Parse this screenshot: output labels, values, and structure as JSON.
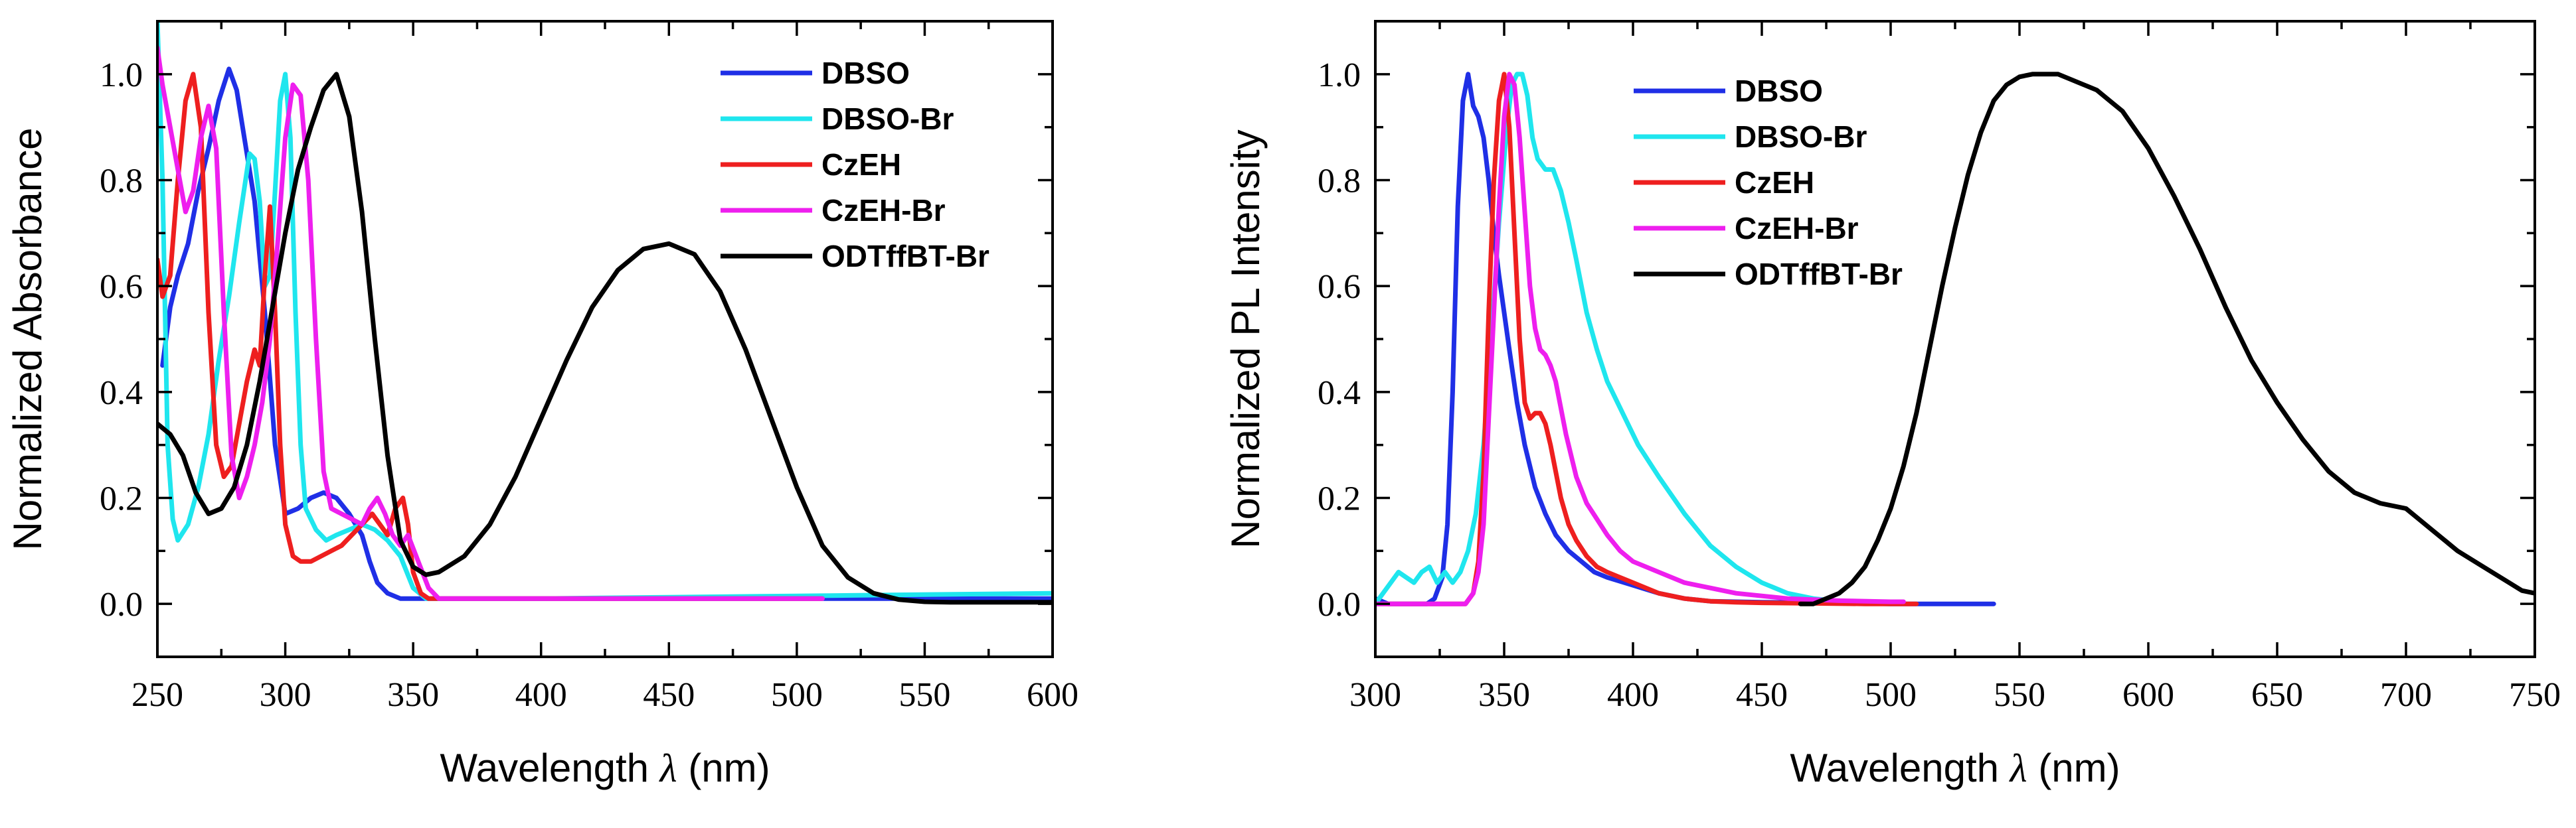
{
  "chart_data": [
    {
      "type": "line",
      "xlabel_prefix": "Wavelength ",
      "xlabel_symbol": "λ",
      "xlabel_suffix": " (nm)",
      "ylabel": "Normalized Absorbance",
      "xlim": [
        250,
        600
      ],
      "ylim": [
        -0.1,
        1.1
      ],
      "xticks": [
        250,
        300,
        350,
        400,
        450,
        500,
        550,
        600
      ],
      "xticklabels": [
        "250",
        "300",
        "350",
        "400",
        "450",
        "500",
        "550",
        "600"
      ],
      "yticks": [
        0.0,
        0.2,
        0.4,
        0.6,
        0.8,
        1.0
      ],
      "yticklabels": [
        "0.0",
        "0.2",
        "0.4",
        "0.6",
        "0.8",
        "1.0"
      ],
      "legend_position": "top-right",
      "series": [
        {
          "name": "DBSO",
          "color": "#1f2fe6",
          "x": [
            252,
            255,
            258,
            262,
            266,
            270,
            274,
            278,
            281,
            284,
            288,
            292,
            296,
            300,
            305,
            310,
            315,
            320,
            325,
            330,
            333,
            336,
            340,
            345,
            350,
            360,
            400,
            500,
            600
          ],
          "y": [
            0.45,
            0.56,
            0.62,
            0.68,
            0.78,
            0.86,
            0.95,
            1.01,
            0.97,
            0.88,
            0.76,
            0.55,
            0.3,
            0.17,
            0.18,
            0.2,
            0.21,
            0.2,
            0.17,
            0.13,
            0.08,
            0.04,
            0.02,
            0.01,
            0.01,
            0.01,
            0.01,
            0.01,
            0.01
          ]
        },
        {
          "name": "DBSO-Br",
          "color": "#1fe6ee",
          "x": [
            250,
            252,
            254,
            256,
            258,
            262,
            266,
            270,
            274,
            278,
            282,
            286,
            288,
            290,
            292,
            294,
            296,
            298,
            300,
            302,
            304,
            306,
            308,
            312,
            316,
            320,
            325,
            330,
            335,
            340,
            345,
            350,
            355,
            360,
            400,
            500,
            600
          ],
          "y": [
            1.1,
            0.8,
            0.3,
            0.16,
            0.12,
            0.15,
            0.22,
            0.32,
            0.46,
            0.58,
            0.72,
            0.85,
            0.84,
            0.76,
            0.6,
            0.62,
            0.78,
            0.95,
            1.0,
            0.88,
            0.55,
            0.3,
            0.18,
            0.14,
            0.12,
            0.13,
            0.14,
            0.15,
            0.14,
            0.12,
            0.09,
            0.03,
            0.01,
            0.01,
            0.01,
            0.015,
            0.02
          ]
        },
        {
          "name": "CzEH",
          "color": "#ee1f1f",
          "x": [
            250,
            252,
            255,
            258,
            261,
            264,
            267,
            270,
            273,
            276,
            279,
            282,
            285,
            288,
            290,
            292,
            294,
            296,
            298,
            300,
            303,
            306,
            310,
            314,
            318,
            322,
            326,
            330,
            334,
            337,
            340,
            343,
            346,
            348,
            350,
            353,
            356,
            360,
            400,
            500,
            510
          ],
          "y": [
            0.65,
            0.58,
            0.62,
            0.8,
            0.95,
            1.0,
            0.9,
            0.55,
            0.3,
            0.24,
            0.26,
            0.34,
            0.42,
            0.48,
            0.45,
            0.62,
            0.75,
            0.55,
            0.3,
            0.15,
            0.09,
            0.08,
            0.08,
            0.09,
            0.1,
            0.11,
            0.13,
            0.15,
            0.17,
            0.15,
            0.13,
            0.18,
            0.2,
            0.15,
            0.06,
            0.02,
            0.01,
            0.01,
            0.01,
            0.01,
            0.01
          ]
        },
        {
          "name": "CzEH-Br",
          "color": "#ee1fee",
          "x": [
            250,
            252,
            255,
            258,
            261,
            264,
            267,
            270,
            273,
            276,
            279,
            282,
            285,
            288,
            291,
            294,
            297,
            300,
            303,
            306,
            309,
            312,
            315,
            318,
            322,
            326,
            330,
            333,
            336,
            339,
            342,
            345,
            348,
            352,
            356,
            360,
            400,
            500,
            510
          ],
          "y": [
            1.05,
            0.98,
            0.9,
            0.82,
            0.74,
            0.78,
            0.88,
            0.94,
            0.86,
            0.55,
            0.28,
            0.2,
            0.24,
            0.3,
            0.38,
            0.5,
            0.68,
            0.88,
            0.98,
            0.96,
            0.8,
            0.5,
            0.25,
            0.18,
            0.17,
            0.16,
            0.15,
            0.18,
            0.2,
            0.17,
            0.13,
            0.11,
            0.13,
            0.08,
            0.03,
            0.01,
            0.01,
            0.01,
            0.01
          ]
        },
        {
          "name": "ODTffBT-Br",
          "color": "#000000",
          "x": [
            250,
            255,
            260,
            265,
            270,
            275,
            280,
            285,
            290,
            295,
            300,
            305,
            310,
            315,
            320,
            325,
            330,
            335,
            340,
            345,
            350,
            355,
            360,
            370,
            380,
            390,
            400,
            410,
            420,
            430,
            440,
            450,
            460,
            470,
            480,
            490,
            500,
            510,
            520,
            530,
            540,
            550,
            560,
            580,
            600
          ],
          "y": [
            0.34,
            0.32,
            0.28,
            0.21,
            0.17,
            0.18,
            0.22,
            0.3,
            0.42,
            0.56,
            0.7,
            0.82,
            0.9,
            0.97,
            1.0,
            0.92,
            0.74,
            0.5,
            0.28,
            0.12,
            0.07,
            0.055,
            0.06,
            0.09,
            0.15,
            0.24,
            0.35,
            0.46,
            0.56,
            0.63,
            0.67,
            0.68,
            0.66,
            0.59,
            0.48,
            0.35,
            0.22,
            0.11,
            0.05,
            0.02,
            0.008,
            0.004,
            0.003,
            0.003,
            0.003
          ]
        }
      ]
    },
    {
      "type": "line",
      "xlabel_prefix": "Wavelength ",
      "xlabel_symbol": "λ",
      "xlabel_suffix": " (nm)",
      "ylabel": "Normalized PL Intensity",
      "xlim": [
        300,
        750
      ],
      "ylim": [
        -0.1,
        1.1
      ],
      "xticks": [
        300,
        350,
        400,
        450,
        500,
        550,
        600,
        650,
        700,
        750
      ],
      "xticklabels": [
        "300",
        "350",
        "400",
        "450",
        "500",
        "550",
        "600",
        "650",
        "700",
        "750"
      ],
      "yticks": [
        0.0,
        0.2,
        0.4,
        0.6,
        0.8,
        1.0
      ],
      "yticklabels": [
        "0.0",
        "0.2",
        "0.4",
        "0.6",
        "0.8",
        "1.0"
      ],
      "legend_position": "top-left",
      "series": [
        {
          "name": "DBSO",
          "color": "#1f2fe6",
          "x": [
            300,
            305,
            310,
            315,
            320,
            323,
            326,
            328,
            330,
            332,
            334,
            336,
            338,
            340,
            342,
            344,
            346,
            348,
            350,
            352,
            355,
            358,
            362,
            366,
            370,
            375,
            380,
            385,
            390,
            400,
            410,
            420,
            430,
            450,
            480,
            500,
            540
          ],
          "y": [
            0.01,
            0.0,
            0.0,
            0.0,
            0.0,
            0.01,
            0.05,
            0.15,
            0.4,
            0.75,
            0.95,
            1.0,
            0.94,
            0.92,
            0.88,
            0.8,
            0.7,
            0.62,
            0.55,
            0.48,
            0.38,
            0.3,
            0.22,
            0.17,
            0.13,
            0.1,
            0.08,
            0.06,
            0.05,
            0.035,
            0.02,
            0.01,
            0.005,
            0.003,
            0.002,
            0.0,
            0.0
          ]
        },
        {
          "name": "DBSO-Br",
          "color": "#1fe6ee",
          "x": [
            300,
            303,
            306,
            309,
            312,
            315,
            318,
            321,
            324,
            327,
            330,
            333,
            336,
            339,
            342,
            345,
            348,
            351,
            353,
            355,
            357,
            359,
            361,
            363,
            366,
            369,
            372,
            375,
            378,
            382,
            386,
            390,
            394,
            398,
            402,
            410,
            420,
            430,
            440,
            450,
            460,
            470,
            480,
            500
          ],
          "y": [
            0.0,
            0.02,
            0.04,
            0.06,
            0.05,
            0.04,
            0.06,
            0.07,
            0.04,
            0.06,
            0.04,
            0.06,
            0.1,
            0.17,
            0.3,
            0.5,
            0.72,
            0.9,
            0.98,
            1.0,
            1.0,
            0.96,
            0.88,
            0.84,
            0.82,
            0.82,
            0.78,
            0.72,
            0.65,
            0.55,
            0.48,
            0.42,
            0.38,
            0.34,
            0.3,
            0.24,
            0.17,
            0.11,
            0.07,
            0.04,
            0.02,
            0.01,
            0.005,
            0.0
          ]
        },
        {
          "name": "CzEH",
          "color": "#ee1f1f",
          "x": [
            300,
            320,
            330,
            335,
            338,
            340,
            342,
            344,
            346,
            348,
            350,
            352,
            354,
            356,
            358,
            360,
            362,
            364,
            366,
            368,
            370,
            372,
            375,
            378,
            382,
            386,
            390,
            395,
            400,
            410,
            420,
            430,
            440,
            450,
            470,
            490,
            510
          ],
          "y": [
            0.0,
            0.0,
            0.0,
            0.0,
            0.02,
            0.08,
            0.25,
            0.55,
            0.8,
            0.95,
            1.0,
            0.9,
            0.7,
            0.5,
            0.38,
            0.35,
            0.36,
            0.36,
            0.34,
            0.3,
            0.25,
            0.2,
            0.15,
            0.12,
            0.09,
            0.07,
            0.06,
            0.05,
            0.04,
            0.02,
            0.01,
            0.005,
            0.003,
            0.002,
            0.001,
            0.0,
            0.0
          ]
        },
        {
          "name": "CzEH-Br",
          "color": "#ee1fee",
          "x": [
            300,
            320,
            330,
            335,
            338,
            340,
            342,
            344,
            346,
            348,
            350,
            352,
            354,
            356,
            358,
            360,
            362,
            364,
            366,
            368,
            370,
            374,
            378,
            382,
            386,
            390,
            395,
            400,
            410,
            420,
            430,
            440,
            450,
            460,
            470,
            480,
            500,
            505
          ],
          "y": [
            0.0,
            0.0,
            0.0,
            0.0,
            0.02,
            0.06,
            0.15,
            0.35,
            0.55,
            0.75,
            0.92,
            1.0,
            0.98,
            0.88,
            0.74,
            0.6,
            0.52,
            0.48,
            0.47,
            0.45,
            0.42,
            0.32,
            0.24,
            0.19,
            0.16,
            0.13,
            0.1,
            0.08,
            0.06,
            0.04,
            0.03,
            0.02,
            0.015,
            0.01,
            0.008,
            0.006,
            0.004,
            0.004
          ]
        },
        {
          "name": "ODTffBT-Br",
          "color": "#000000",
          "x": [
            465,
            470,
            475,
            480,
            485,
            490,
            495,
            500,
            505,
            510,
            515,
            520,
            525,
            530,
            535,
            540,
            545,
            550,
            555,
            560,
            565,
            570,
            575,
            580,
            585,
            590,
            600,
            610,
            620,
            630,
            640,
            650,
            660,
            670,
            680,
            690,
            700,
            705,
            710,
            720,
            730,
            740,
            745,
            750
          ],
          "y": [
            0.0,
            0.0,
            0.01,
            0.02,
            0.04,
            0.07,
            0.12,
            0.18,
            0.26,
            0.36,
            0.48,
            0.6,
            0.71,
            0.81,
            0.89,
            0.95,
            0.98,
            0.995,
            1.0,
            1.0,
            1.0,
            0.99,
            0.98,
            0.97,
            0.95,
            0.93,
            0.86,
            0.77,
            0.67,
            0.56,
            0.46,
            0.38,
            0.31,
            0.25,
            0.21,
            0.19,
            0.18,
            0.16,
            0.14,
            0.1,
            0.07,
            0.04,
            0.025,
            0.02
          ]
        }
      ]
    }
  ]
}
